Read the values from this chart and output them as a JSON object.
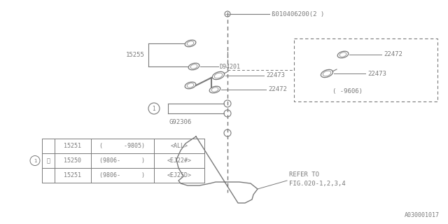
{
  "bg_color": "#ffffff",
  "line_color": "#7a7a7a",
  "fig_code": "A030001017",
  "bolt_label": "ß010406200(2 )",
  "refer_text1": "REFER TO",
  "refer_text2": "FIG.020-1,2,3,4",
  "table_rows": [
    [
      "",
      "15251",
      "(      -9805)",
      "<ALL>"
    ],
    [
      "①",
      "15250",
      "(9806-      )",
      "<EJ22#>"
    ],
    [
      "",
      "15251",
      "(9806-      )",
      "<EJ25D>"
    ]
  ]
}
